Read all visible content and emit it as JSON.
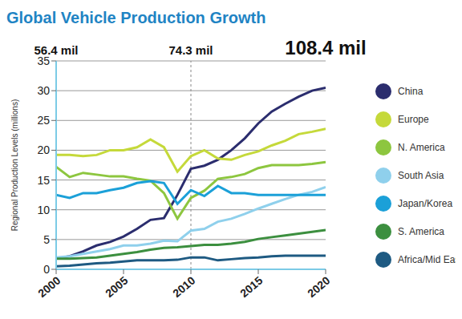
{
  "chart_data": {
    "type": "line",
    "title": "Global Vehicle Production Growth",
    "y_label": "Regional Production Levels (millions)",
    "x": [
      2000,
      2001,
      2002,
      2003,
      2004,
      2005,
      2006,
      2007,
      2008,
      2009,
      2010,
      2011,
      2012,
      2013,
      2014,
      2015,
      2016,
      2017,
      2018,
      2019,
      2020
    ],
    "series": [
      {
        "name": "China",
        "color": "#2b2d6e",
        "values": [
          1.8,
          2.2,
          3.0,
          4.0,
          4.6,
          5.5,
          6.8,
          8.3,
          8.6,
          12.5,
          16.9,
          17.4,
          18.4,
          20.0,
          22.0,
          24.5,
          26.5,
          27.8,
          29.0,
          30.0,
          30.5
        ]
      },
      {
        "name": "Europe",
        "color": "#c5d93a",
        "values": [
          19.2,
          19.2,
          19.0,
          19.2,
          20.0,
          20.0,
          20.5,
          21.8,
          20.5,
          16.4,
          19.0,
          20.0,
          18.6,
          18.4,
          19.2,
          19.8,
          20.8,
          21.6,
          22.7,
          23.1,
          23.6
        ]
      },
      {
        "name": "N. America",
        "color": "#8dc63f",
        "values": [
          17.2,
          15.5,
          16.2,
          15.9,
          15.6,
          15.6,
          15.2,
          14.9,
          12.8,
          8.5,
          12.0,
          13.2,
          15.2,
          15.5,
          16.0,
          17.0,
          17.5,
          17.5,
          17.5,
          17.7,
          18.0
        ]
      },
      {
        "name": "South Asia",
        "color": "#8fd0ec",
        "values": [
          2.0,
          2.2,
          2.6,
          3.0,
          3.4,
          4.0,
          4.0,
          4.3,
          4.8,
          4.7,
          6.5,
          6.8,
          8.0,
          8.5,
          9.3,
          10.2,
          11.0,
          11.8,
          12.5,
          13.0,
          13.8
        ]
      },
      {
        "name": "Japan/Korea",
        "color": "#1ba0d8",
        "values": [
          12.5,
          12.0,
          12.8,
          12.8,
          13.3,
          13.7,
          14.5,
          14.8,
          14.5,
          11.0,
          13.3,
          12.3,
          14.0,
          12.8,
          12.8,
          12.5,
          12.5,
          12.5,
          12.5,
          12.5,
          12.5
        ]
      },
      {
        "name": "S. America",
        "color": "#3c8f3f",
        "values": [
          1.8,
          1.8,
          1.9,
          2.0,
          2.3,
          2.6,
          2.9,
          3.3,
          3.6,
          3.7,
          3.9,
          4.1,
          4.1,
          4.3,
          4.6,
          5.1,
          5.4,
          5.7,
          6.0,
          6.3,
          6.6
        ]
      },
      {
        "name": "Africa/Mid East",
        "color": "#1e5a82",
        "values": [
          0.5,
          0.6,
          0.8,
          1.0,
          1.1,
          1.3,
          1.5,
          1.5,
          1.5,
          1.6,
          2.0,
          2.0,
          1.5,
          1.7,
          1.9,
          2.0,
          2.2,
          2.3,
          2.3,
          2.3,
          2.3
        ]
      }
    ],
    "xlim": [
      2000,
      2020
    ],
    "xticks": [
      2000,
      2005,
      2010,
      2015,
      2020
    ],
    "ylim": [
      0,
      35
    ],
    "yticks": [
      0,
      5,
      10,
      15,
      20,
      25,
      30,
      35
    ],
    "grid": true,
    "legend": "right",
    "annotations": [
      {
        "text": "56.4 mil",
        "x": 2000
      },
      {
        "text": "74.3 mil",
        "x": 2010,
        "line_style": "dashed"
      },
      {
        "text": "108.4 mil",
        "x": 2020
      }
    ]
  }
}
